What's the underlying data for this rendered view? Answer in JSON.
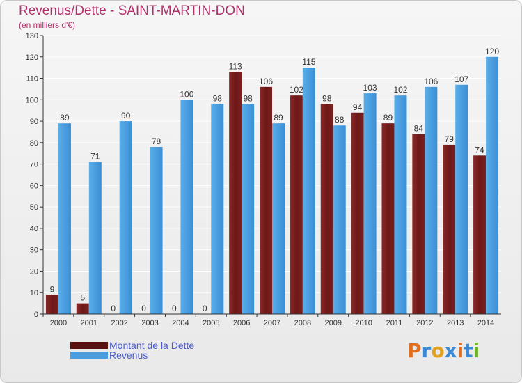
{
  "header": {
    "title": "Revenus/Dette - SAINT-MARTIN-DON",
    "subtitle": "(en milliers d'€)"
  },
  "chart_data": {
    "type": "bar",
    "categories": [
      "2000",
      "2001",
      "2002",
      "2003",
      "2004",
      "2005",
      "2006",
      "2007",
      "2008",
      "2009",
      "2010",
      "2011",
      "2012",
      "2013",
      "2014"
    ],
    "series": [
      {
        "name": "Montant de la Dette",
        "color": "#7a1f1f",
        "values": [
          9,
          5,
          0,
          0,
          0,
          0,
          113,
          106,
          102,
          98,
          94,
          89,
          84,
          79,
          74
        ]
      },
      {
        "name": "Revenus",
        "color": "#4a9ee0",
        "values": [
          89,
          71,
          90,
          78,
          100,
          98,
          98,
          89,
          115,
          88,
          103,
          102,
          106,
          107,
          120
        ]
      }
    ],
    "ylim": [
      0,
      130
    ],
    "yticks": [
      0,
      10,
      20,
      30,
      40,
      50,
      60,
      70,
      80,
      90,
      100,
      110,
      120,
      130
    ],
    "grid": true,
    "legend_position": "bottom-left"
  },
  "legend": {
    "items": [
      {
        "label": "Montant de la Dette",
        "color": "#5a1010"
      },
      {
        "label": "Revenus",
        "color": "#4a9ee0"
      }
    ]
  },
  "logo": {
    "letters": [
      "P",
      "r",
      "o",
      "x",
      "i",
      "t",
      "i"
    ],
    "colors": [
      "#e07020",
      "#3c8ad6",
      "#e0a020",
      "#3c8ad6",
      "#e07020",
      "#3c8ad6",
      "#70b030"
    ]
  }
}
